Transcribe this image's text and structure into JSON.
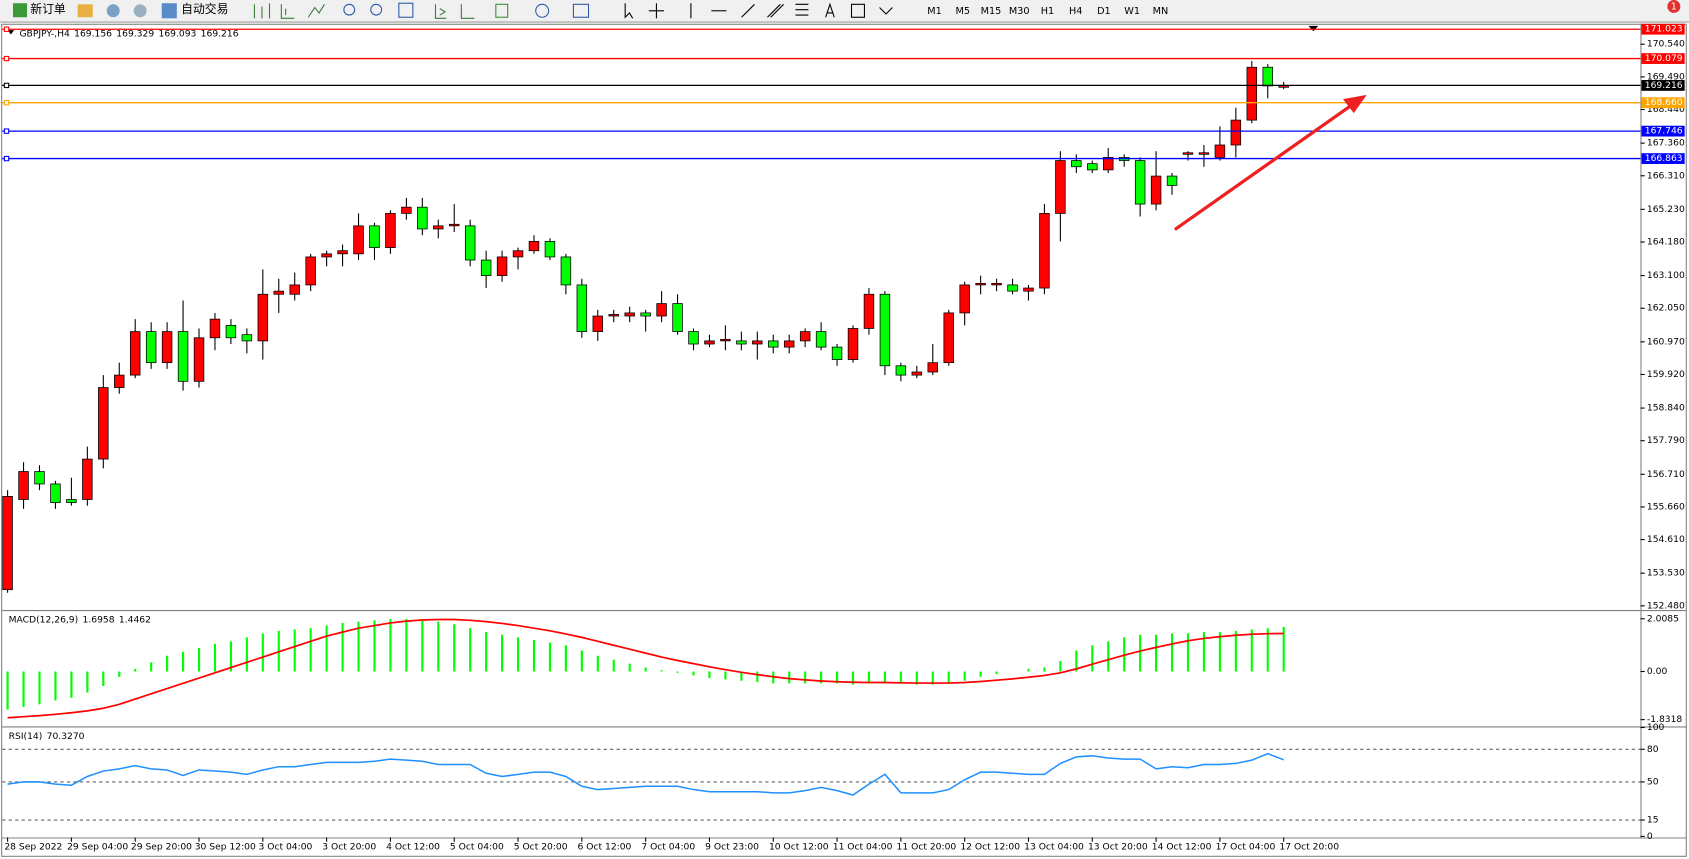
{
  "toolbar": {
    "new_order": "新订单",
    "auto_trading": "自动交易",
    "timeframes": [
      "M1",
      "M5",
      "M15",
      "M30",
      "H1",
      "H4",
      "D1",
      "W1",
      "MN"
    ]
  },
  "notification_count": 1,
  "chart_data": [
    {
      "type": "candlestick",
      "symbol": "GBPJPY-,H4",
      "up_color": "#ff0000",
      "down_color": "#00ff00",
      "categories": [
        "28 Sep 2022",
        null,
        null,
        null,
        "29 Sep 04:00",
        null,
        null,
        null,
        "29 Sep 20:00",
        null,
        null,
        null,
        "30 Sep 12:00",
        null,
        null,
        null,
        "3 Oct 04:00",
        null,
        null,
        null,
        "3 Oct 20:00",
        null,
        null,
        null,
        "4 Oct 12:00",
        null,
        null,
        null,
        "5 Oct 04:00",
        null,
        null,
        null,
        "5 Oct 20:00",
        null,
        null,
        null,
        "6 Oct 12:00",
        null,
        null,
        null,
        "7 Oct 04:00",
        null,
        null,
        null,
        "9 Oct 23:00",
        null,
        null,
        null,
        "10 Oct 12:00",
        null,
        null,
        null,
        "11 Oct 04:00",
        null,
        null,
        null,
        "11 Oct 20:00",
        null,
        null,
        null,
        "12 Oct 12:00",
        null,
        null,
        null,
        "13 Oct 04:00",
        null,
        null,
        null,
        "13 Oct 20:00",
        null,
        null,
        null,
        "14 Oct 12:00",
        null,
        null,
        null,
        "17 Oct 04:00",
        null,
        null,
        null,
        "17 Oct 20:00"
      ],
      "ohlc": [
        [
          153.0,
          156.2,
          152.9,
          156.0
        ],
        [
          155.9,
          157.1,
          155.6,
          156.8
        ],
        [
          156.8,
          157.0,
          156.2,
          156.4
        ],
        [
          156.4,
          156.5,
          155.6,
          155.8
        ],
        [
          155.9,
          156.6,
          155.7,
          155.8
        ],
        [
          155.9,
          157.6,
          155.7,
          157.2
        ],
        [
          157.2,
          159.9,
          156.9,
          159.5
        ],
        [
          159.5,
          160.3,
          159.3,
          159.9
        ],
        [
          159.9,
          161.7,
          159.8,
          161.3
        ],
        [
          161.3,
          161.6,
          160.1,
          160.3
        ],
        [
          160.3,
          161.6,
          160.1,
          161.3
        ],
        [
          161.3,
          162.3,
          159.4,
          159.7
        ],
        [
          159.7,
          161.4,
          159.5,
          161.1
        ],
        [
          161.1,
          161.9,
          160.7,
          161.7
        ],
        [
          161.5,
          161.7,
          160.9,
          161.1
        ],
        [
          161.2,
          161.4,
          160.6,
          161.0
        ],
        [
          161.0,
          163.3,
          160.4,
          162.5
        ],
        [
          162.5,
          163.0,
          161.9,
          162.6
        ],
        [
          162.5,
          163.2,
          162.3,
          162.8
        ],
        [
          162.8,
          163.8,
          162.6,
          163.7
        ],
        [
          163.7,
          163.9,
          163.4,
          163.8
        ],
        [
          163.8,
          164.1,
          163.4,
          163.9
        ],
        [
          163.8,
          165.1,
          163.6,
          164.7
        ],
        [
          164.7,
          164.8,
          163.6,
          164.0
        ],
        [
          164.0,
          165.2,
          163.8,
          165.1
        ],
        [
          165.1,
          165.6,
          164.9,
          165.3
        ],
        [
          165.3,
          165.6,
          164.4,
          164.6
        ],
        [
          164.6,
          164.9,
          164.3,
          164.7
        ],
        [
          164.7,
          165.4,
          164.5,
          164.75
        ],
        [
          164.7,
          164.9,
          163.4,
          163.6
        ],
        [
          163.6,
          163.9,
          162.7,
          163.1
        ],
        [
          163.1,
          163.9,
          162.9,
          163.7
        ],
        [
          163.7,
          164.0,
          163.3,
          163.9
        ],
        [
          163.9,
          164.4,
          163.8,
          164.2
        ],
        [
          164.2,
          164.3,
          163.6,
          163.7
        ],
        [
          163.7,
          163.8,
          162.5,
          162.8
        ],
        [
          162.8,
          163.0,
          161.1,
          161.3
        ],
        [
          161.3,
          162.0,
          161.0,
          161.8
        ],
        [
          161.8,
          162.0,
          161.6,
          161.85
        ],
        [
          161.8,
          162.1,
          161.6,
          161.9
        ],
        [
          161.9,
          162.0,
          161.3,
          161.8
        ],
        [
          161.8,
          162.6,
          161.6,
          162.2
        ],
        [
          162.2,
          162.5,
          161.2,
          161.3
        ],
        [
          161.3,
          161.4,
          160.7,
          160.9
        ],
        [
          160.9,
          161.2,
          160.8,
          161.0
        ],
        [
          161.0,
          161.5,
          160.7,
          161.05
        ],
        [
          161.0,
          161.3,
          160.7,
          160.9
        ],
        [
          160.9,
          161.3,
          160.4,
          161.0
        ],
        [
          161.0,
          161.2,
          160.6,
          160.8
        ],
        [
          160.8,
          161.2,
          160.6,
          161.0
        ],
        [
          161.0,
          161.4,
          160.8,
          161.3
        ],
        [
          161.3,
          161.6,
          160.7,
          160.8
        ],
        [
          160.8,
          160.9,
          160.2,
          160.4
        ],
        [
          160.4,
          161.5,
          160.3,
          161.4
        ],
        [
          161.4,
          162.7,
          161.2,
          162.5
        ],
        [
          162.5,
          162.6,
          159.9,
          160.2
        ],
        [
          160.2,
          160.3,
          159.7,
          159.9
        ],
        [
          159.9,
          160.2,
          159.8,
          160.0
        ],
        [
          160.0,
          160.9,
          159.9,
          160.3
        ],
        [
          160.3,
          162.0,
          160.2,
          161.9
        ],
        [
          161.9,
          162.9,
          161.5,
          162.8
        ],
        [
          162.8,
          163.1,
          162.5,
          162.85
        ],
        [
          162.8,
          163.0,
          162.6,
          162.85
        ],
        [
          162.8,
          163.0,
          162.5,
          162.6
        ],
        [
          162.6,
          162.8,
          162.3,
          162.7
        ],
        [
          162.7,
          165.4,
          162.5,
          165.1
        ],
        [
          165.1,
          167.1,
          164.2,
          166.8
        ],
        [
          166.8,
          167.0,
          166.4,
          166.6
        ],
        [
          166.7,
          166.8,
          166.4,
          166.5
        ],
        [
          166.5,
          167.2,
          166.4,
          166.9
        ],
        [
          166.9,
          167.0,
          166.6,
          166.8
        ],
        [
          166.8,
          166.9,
          165.0,
          165.4
        ],
        [
          165.4,
          167.1,
          165.2,
          166.3
        ],
        [
          166.3,
          166.4,
          165.7,
          166.0
        ],
        [
          167.0,
          167.1,
          166.8,
          167.05
        ],
        [
          167.0,
          167.3,
          166.6,
          167.05
        ],
        [
          166.9,
          167.9,
          166.8,
          167.3
        ],
        [
          167.3,
          168.5,
          166.9,
          168.1
        ],
        [
          168.1,
          170.0,
          168.0,
          169.8
        ],
        [
          169.8,
          169.9,
          168.8,
          169.2
        ],
        [
          169.156,
          169.329,
          169.093,
          169.216
        ]
      ],
      "ylim": [
        152.38,
        171.2
      ],
      "yticks": [
        {
          "value": 152.48,
          "label": "152.480"
        },
        {
          "value": 153.53,
          "label": "153.530"
        },
        {
          "value": 154.61,
          "label": "154.610"
        },
        {
          "value": 155.66,
          "label": "155.660"
        },
        {
          "value": 156.71,
          "label": "156.710"
        },
        {
          "value": 157.79,
          "label": "157.790"
        },
        {
          "value": 158.84,
          "label": "158.840"
        },
        {
          "value": 159.92,
          "label": "159.920"
        },
        {
          "value": 160.97,
          "label": "160.970"
        },
        {
          "value": 162.05,
          "label": "162.050"
        },
        {
          "value": 163.1,
          "label": "163.100"
        },
        {
          "value": 164.18,
          "label": "164.180"
        },
        {
          "value": 165.23,
          "label": "165.230"
        },
        {
          "value": 166.31,
          "label": "166.310"
        },
        {
          "value": 167.36,
          "label": "167.360"
        },
        {
          "value": 168.44,
          "label": "168.440"
        },
        {
          "value": 169.49,
          "label": "169.490"
        },
        {
          "value": 170.54,
          "label": "170.540"
        }
      ],
      "levels": [
        {
          "value": 171.023,
          "color": "#ff0000"
        },
        {
          "value": 170.079,
          "color": "#ff0000"
        },
        {
          "value": 169.216,
          "color": "#000000"
        },
        {
          "value": 168.66,
          "label": "168.660",
          "color": "#ffa500"
        },
        {
          "value": 167.746,
          "color": "#0000ff"
        },
        {
          "value": 166.863,
          "color": "#0000ff"
        }
      ]
    },
    {
      "type": "macd",
      "title": "MACD(12,26,9)",
      "series": [
        {
          "style": "histogram",
          "color": "#00ff00",
          "values": [
            -1.45,
            -1.35,
            -1.25,
            -1.1,
            -1.0,
            -0.8,
            -0.55,
            -0.2,
            0.1,
            0.35,
            0.6,
            0.75,
            0.9,
            1.05,
            1.15,
            1.3,
            1.45,
            1.55,
            1.6,
            1.65,
            1.75,
            1.85,
            1.9,
            1.95,
            2.0,
            2.0,
            1.95,
            1.9,
            1.8,
            1.65,
            1.5,
            1.4,
            1.3,
            1.2,
            1.1,
            1.0,
            0.8,
            0.6,
            0.45,
            0.3,
            0.15,
            0.05,
            -0.05,
            -0.15,
            -0.25,
            -0.3,
            -0.35,
            -0.4,
            -0.45,
            -0.45,
            -0.45,
            -0.45,
            -0.45,
            -0.5,
            -0.45,
            -0.4,
            -0.45,
            -0.5,
            -0.5,
            -0.45,
            -0.35,
            -0.2,
            -0.1,
            0,
            0.1,
            0.15,
            0.4,
            0.8,
            1.0,
            1.15,
            1.3,
            1.4,
            1.4,
            1.45,
            1.45,
            1.5,
            1.5,
            1.55,
            1.6,
            1.65,
            1.6958
          ]
        },
        {
          "style": "line",
          "color": "#ff0000",
          "values": [
            -1.76,
            -1.72,
            -1.68,
            -1.63,
            -1.57,
            -1.5,
            -1.4,
            -1.25,
            -1.05,
            -0.85,
            -0.65,
            -0.45,
            -0.25,
            -0.05,
            0.15,
            0.35,
            0.55,
            0.75,
            0.95,
            1.15,
            1.35,
            1.5,
            1.65,
            1.75,
            1.85,
            1.92,
            1.96,
            1.98,
            1.98,
            1.95,
            1.9,
            1.83,
            1.75,
            1.65,
            1.55,
            1.43,
            1.3,
            1.15,
            1.0,
            0.85,
            0.7,
            0.55,
            0.42,
            0.3,
            0.18,
            0.07,
            -0.03,
            -0.12,
            -0.2,
            -0.27,
            -0.32,
            -0.36,
            -0.39,
            -0.41,
            -0.42,
            -0.42,
            -0.43,
            -0.44,
            -0.44,
            -0.44,
            -0.42,
            -0.38,
            -0.33,
            -0.28,
            -0.22,
            -0.15,
            -0.05,
            0.1,
            0.28,
            0.45,
            0.62,
            0.78,
            0.92,
            1.05,
            1.17,
            1.26,
            1.33,
            1.38,
            1.42,
            1.44,
            1.4462
          ]
        }
      ],
      "ylim": [
        -2.05,
        2.3
      ],
      "yticks": [
        2.0085,
        {
          "value": 0,
          "label": "0.00"
        },
        -1.8318
      ]
    },
    {
      "type": "rsi",
      "title": "RSI(14)",
      "current_label": "70.3270",
      "series": [
        {
          "color": "#1e90ff",
          "values": [
            48,
            50,
            50,
            48,
            47,
            55,
            60,
            62,
            65,
            62,
            61,
            56,
            61,
            60,
            59,
            57,
            61,
            64,
            64,
            66,
            68,
            68,
            68,
            69,
            71,
            70,
            69,
            66,
            66,
            66,
            58,
            55,
            57,
            59,
            59,
            55,
            46,
            43,
            44,
            45,
            46,
            46,
            46,
            43,
            41,
            41,
            41,
            41,
            40,
            40,
            42,
            45,
            42,
            38,
            48,
            57,
            40,
            40,
            40,
            43,
            52,
            59,
            59,
            58,
            57,
            57,
            67,
            73,
            74,
            72,
            71,
            71,
            62,
            64,
            63,
            66,
            66,
            67,
            70,
            76,
            70.327
          ]
        }
      ],
      "ylim": [
        0,
        100
      ],
      "yticks": [
        0,
        15,
        50,
        80,
        100
      ]
    }
  ]
}
